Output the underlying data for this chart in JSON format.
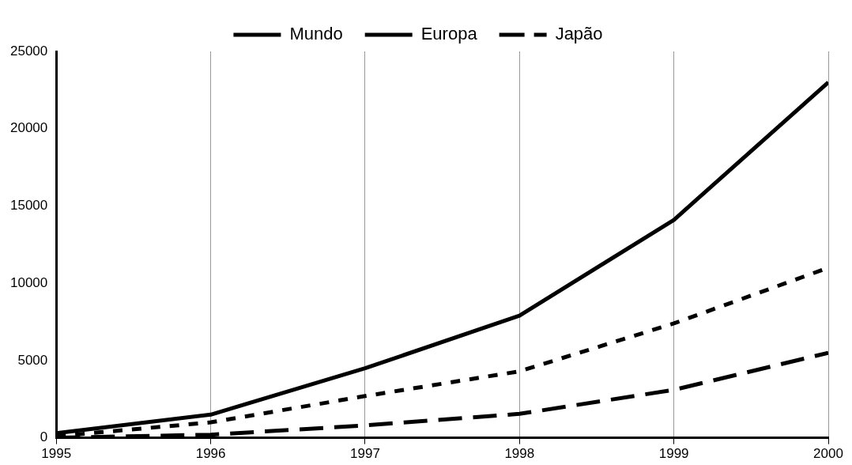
{
  "chart_data": {
    "type": "line",
    "x": [
      1995,
      1996,
      1997,
      1998,
      1999,
      2000
    ],
    "xlim": [
      1995,
      2000
    ],
    "xticks": [
      1995,
      1996,
      1997,
      1998,
      1999,
      2000
    ],
    "ylim": [
      0,
      25000
    ],
    "yticks": [
      0,
      5000,
      10000,
      15000,
      20000,
      25000
    ],
    "grid": "x",
    "legend": "top",
    "marker": "none",
    "series": [
      {
        "name": "Mundo",
        "color": "#000000",
        "line_style": "solid",
        "values": [
          300,
          1500,
          4500,
          7900,
          14100,
          23000
        ]
      },
      {
        "name": "Europa",
        "color": "#000000",
        "line_style": "dotted",
        "values": [
          100,
          1000,
          2700,
          4300,
          7400,
          11000
        ]
      },
      {
        "name": "Japão",
        "color": "#000000",
        "line_style": "dashed",
        "values": [
          0,
          200,
          800,
          1550,
          3100,
          5500
        ]
      }
    ]
  }
}
